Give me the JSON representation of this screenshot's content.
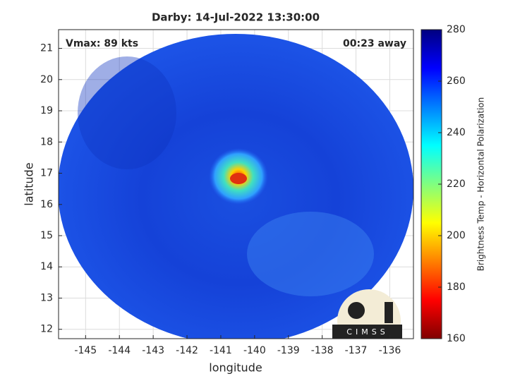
{
  "chart_data": {
    "type": "image",
    "title": "Darby: 14-Jul-2022 13:30:00",
    "annotations": [
      "Vmax: 89 kts",
      "00:23 away"
    ],
    "xlabel": "longitude",
    "ylabel": "latitude",
    "xlim": [
      -145.8,
      -135.3
    ],
    "ylim": [
      11.7,
      21.6
    ],
    "xticks": [
      -145,
      -144,
      -143,
      -142,
      -141,
      -140,
      -139,
      -138,
      -137,
      -136
    ],
    "yticks": [
      12,
      13,
      14,
      15,
      16,
      17,
      18,
      19,
      20,
      21
    ],
    "grid": true,
    "colorbar": {
      "label": "Brightness Temp - Horizontal Polarization",
      "lim": [
        160,
        280
      ],
      "ticks": [
        160,
        180,
        200,
        220,
        240,
        260,
        280
      ],
      "colormap": [
        "#800000",
        "#ff0000",
        "#ff8000",
        "#ffff00",
        "#80ff80",
        "#00ffff",
        "#0080ff",
        "#0000ff",
        "#000080"
      ]
    },
    "logo": "CIMSS"
  }
}
